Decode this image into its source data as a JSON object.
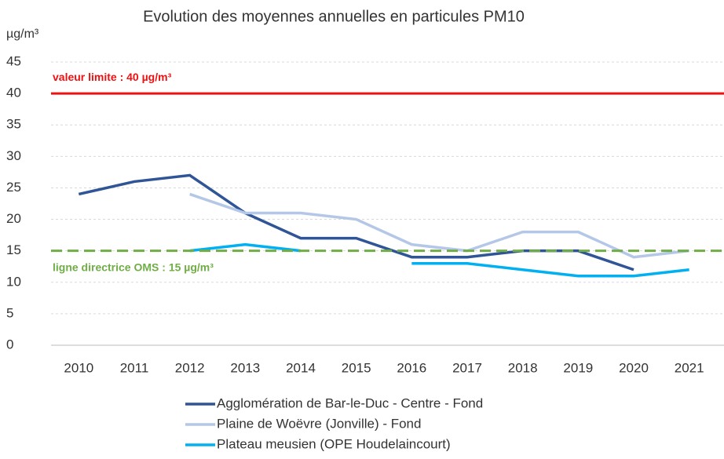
{
  "chart_data": {
    "type": "line",
    "title": "Evolution des moyennes annuelles en particules PM10",
    "y_label": "µg/m³",
    "categories": [
      "2010",
      "2011",
      "2012",
      "2013",
      "2014",
      "2015",
      "2016",
      "2017",
      "2018",
      "2019",
      "2020",
      "2021"
    ],
    "series": [
      {
        "name": "Agglomération de Bar-le-Duc - Centre - Fond",
        "color": "#2f5597",
        "values": [
          24,
          26,
          27,
          21,
          17,
          17,
          14,
          14,
          15,
          15,
          12,
          null
        ]
      },
      {
        "name": "Plaine de Woëvre (Jonville) - Fond",
        "color": "#b4c7e7",
        "values": [
          null,
          null,
          24,
          21,
          21,
          20,
          16,
          15,
          18,
          18,
          14,
          15
        ]
      },
      {
        "name": "Plateau meusien (OPE Houdelaincourt)",
        "color": "#00b0f0",
        "values": [
          null,
          null,
          15,
          16,
          15,
          null,
          13,
          13,
          12,
          11,
          11,
          12
        ]
      }
    ],
    "reference_lines": [
      {
        "label": "valeur limite : 40 µg/m³",
        "value": 40,
        "color": "#ee1111",
        "dashed": false
      },
      {
        "label": "ligne directrice OMS : 15 µg/m³",
        "value": 15,
        "color": "#70ad47",
        "dashed": true
      }
    ],
    "ylim": [
      0,
      45
    ],
    "yticks": [
      0,
      5,
      10,
      15,
      20,
      25,
      30,
      35,
      40,
      45
    ],
    "grid": true
  }
}
